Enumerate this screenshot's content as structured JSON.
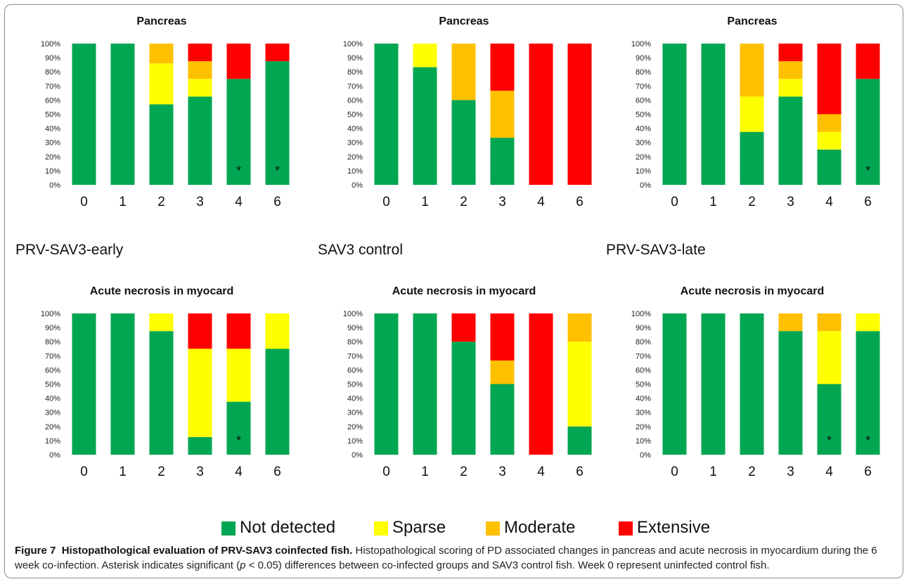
{
  "colors": {
    "not_detected": "#00a651",
    "sparse": "#ffff00",
    "moderate": "#ffc000",
    "extensive": "#ff0000"
  },
  "groups": [
    "PRV-SAV3-early",
    "SAV3 control",
    "PRV-SAV3-late"
  ],
  "legend": [
    "Not detected",
    "Sparse",
    "Moderate",
    "Extensive"
  ],
  "caption": {
    "figure_label": "Figure 7",
    "title": "Histopathological evaluation of PRV-SAV3 coinfected fish.",
    "text_before_p": " Histopathological scoring of PD associated changes in pancreas and acute necrosis in myocardium during the 6 week co-infection. Asterisk indicates significant (",
    "p_symbol": "p",
    "text_after_p": " < 0.05) differences between co-infected groups and SAV3 control fish. Week 0 represent uninfected control fish."
  },
  "chart_data": [
    {
      "type": "bar",
      "stacked": true,
      "title": "Pancreas",
      "group": "PRV-SAV3-early",
      "categories": [
        "0",
        "1",
        "2",
        "3",
        "4",
        "6"
      ],
      "ylim": [
        0,
        100
      ],
      "yticks": [
        "0%",
        "10%",
        "20%",
        "30%",
        "40%",
        "50%",
        "60%",
        "70%",
        "80%",
        "90%",
        "100%"
      ],
      "series": [
        {
          "name": "Not detected",
          "values": [
            100,
            100,
            57,
            62.5,
            75,
            87.5
          ]
        },
        {
          "name": "Sparse",
          "values": [
            0,
            0,
            29,
            12.5,
            0,
            0
          ]
        },
        {
          "name": "Moderate",
          "values": [
            0,
            0,
            14,
            12.5,
            0,
            0
          ]
        },
        {
          "name": "Extensive",
          "values": [
            0,
            0,
            0,
            12.5,
            25,
            12.5
          ]
        }
      ],
      "asterisks": [
        "4",
        "6"
      ]
    },
    {
      "type": "bar",
      "stacked": true,
      "title": "Pancreas",
      "group": "SAV3 control",
      "categories": [
        "0",
        "1",
        "2",
        "3",
        "4",
        "6"
      ],
      "ylim": [
        0,
        100
      ],
      "yticks": [
        "0%",
        "10%",
        "20%",
        "30%",
        "40%",
        "50%",
        "60%",
        "70%",
        "80%",
        "90%",
        "100%"
      ],
      "series": [
        {
          "name": "Not detected",
          "values": [
            100,
            83.3,
            60,
            33.3,
            0,
            0
          ]
        },
        {
          "name": "Sparse",
          "values": [
            0,
            16.7,
            0,
            0,
            0,
            0
          ]
        },
        {
          "name": "Moderate",
          "values": [
            0,
            0,
            40,
            33.3,
            0,
            0
          ]
        },
        {
          "name": "Extensive",
          "values": [
            0,
            0,
            0,
            33.4,
            100,
            100
          ]
        }
      ],
      "asterisks": []
    },
    {
      "type": "bar",
      "stacked": true,
      "title": "Pancreas",
      "group": "PRV-SAV3-late",
      "categories": [
        "0",
        "1",
        "2",
        "3",
        "4",
        "6"
      ],
      "ylim": [
        0,
        100
      ],
      "yticks": [
        "0%",
        "10%",
        "20%",
        "30%",
        "40%",
        "50%",
        "60%",
        "70%",
        "80%",
        "90%",
        "100%"
      ],
      "series": [
        {
          "name": "Not detected",
          "values": [
            100,
            100,
            37.5,
            62.5,
            25,
            75
          ]
        },
        {
          "name": "Sparse",
          "values": [
            0,
            0,
            25,
            12.5,
            12.5,
            0
          ]
        },
        {
          "name": "Moderate",
          "values": [
            0,
            0,
            37.5,
            12.5,
            12.5,
            0
          ]
        },
        {
          "name": "Extensive",
          "values": [
            0,
            0,
            0,
            12.5,
            50,
            25
          ]
        }
      ],
      "asterisks": [
        "6"
      ]
    },
    {
      "type": "bar",
      "stacked": true,
      "title": "Acute necrosis in myocard",
      "group": "PRV-SAV3-early",
      "categories": [
        "0",
        "1",
        "2",
        "3",
        "4",
        "6"
      ],
      "ylim": [
        0,
        100
      ],
      "yticks": [
        "0%",
        "10%",
        "20%",
        "30%",
        "40%",
        "50%",
        "60%",
        "70%",
        "80%",
        "90%",
        "100%"
      ],
      "series": [
        {
          "name": "Not detected",
          "values": [
            100,
            100,
            87.5,
            12.5,
            37.5,
            75
          ]
        },
        {
          "name": "Sparse",
          "values": [
            0,
            0,
            12.5,
            62.5,
            37.5,
            25
          ]
        },
        {
          "name": "Moderate",
          "values": [
            0,
            0,
            0,
            0,
            0,
            0
          ]
        },
        {
          "name": "Extensive",
          "values": [
            0,
            0,
            0,
            25,
            25,
            0
          ]
        }
      ],
      "asterisks": [
        "4"
      ]
    },
    {
      "type": "bar",
      "stacked": true,
      "title": "Acute necrosis in myocard",
      "group": "SAV3 control",
      "categories": [
        "0",
        "1",
        "2",
        "3",
        "4",
        "6"
      ],
      "ylim": [
        0,
        100
      ],
      "yticks": [
        "0%",
        "10%",
        "20%",
        "30%",
        "40%",
        "50%",
        "60%",
        "70%",
        "80%",
        "90%",
        "100%"
      ],
      "series": [
        {
          "name": "Not detected",
          "values": [
            100,
            100,
            80,
            50,
            0,
            20
          ]
        },
        {
          "name": "Sparse",
          "values": [
            0,
            0,
            0,
            0,
            0,
            60
          ]
        },
        {
          "name": "Moderate",
          "values": [
            0,
            0,
            0,
            16.7,
            0,
            20
          ]
        },
        {
          "name": "Extensive",
          "values": [
            0,
            0,
            20,
            33.3,
            100,
            0
          ]
        }
      ],
      "asterisks": []
    },
    {
      "type": "bar",
      "stacked": true,
      "title": "Acute necrosis in myocard",
      "group": "PRV-SAV3-late",
      "categories": [
        "0",
        "1",
        "2",
        "3",
        "4",
        "6"
      ],
      "ylim": [
        0,
        100
      ],
      "yticks": [
        "0%",
        "10%",
        "20%",
        "30%",
        "40%",
        "50%",
        "60%",
        "70%",
        "80%",
        "90%",
        "100%"
      ],
      "series": [
        {
          "name": "Not detected",
          "values": [
            100,
            100,
            100,
            87.5,
            50,
            87.5
          ]
        },
        {
          "name": "Sparse",
          "values": [
            0,
            0,
            0,
            0,
            37.5,
            12.5
          ]
        },
        {
          "name": "Moderate",
          "values": [
            0,
            0,
            0,
            12.5,
            12.5,
            0
          ]
        },
        {
          "name": "Extensive",
          "values": [
            0,
            0,
            0,
            0,
            0,
            0
          ]
        }
      ],
      "asterisks": [
        "4",
        "6"
      ]
    }
  ]
}
